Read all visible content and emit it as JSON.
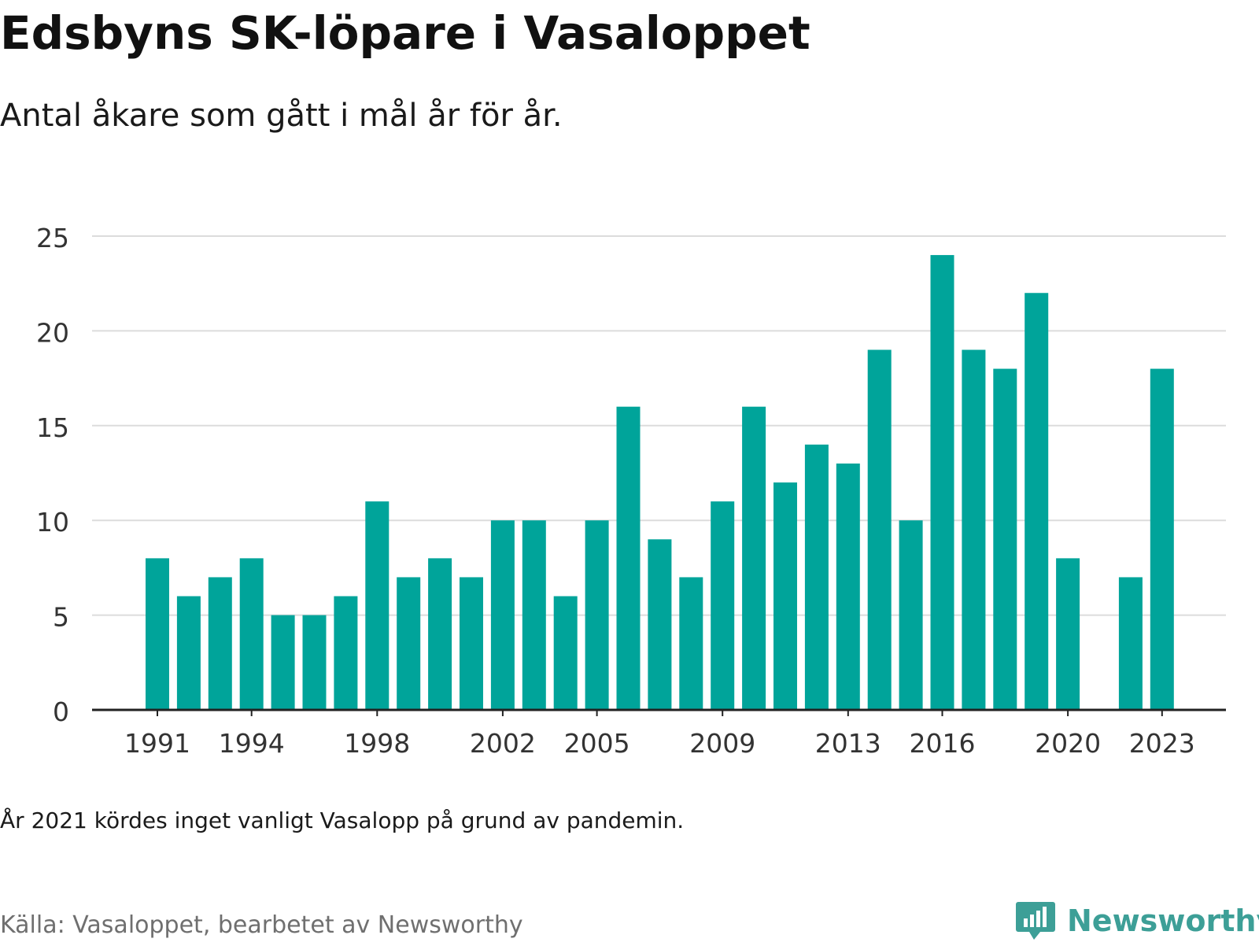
{
  "header": {
    "title": "Edsbyns SK-löpare i Vasaloppet",
    "subtitle": "Antal åkare som gått i mål år för år."
  },
  "footer": {
    "note": "År 2021 kördes inget vanligt Vasalopp på grund av pandemin.",
    "source": "Källa: Vasaloppet, bearbetet av Newsworthy",
    "brand": "Newsworthy"
  },
  "colors": {
    "bar": "#00a49a",
    "grid": "#dcdcdc",
    "axis": "#222222",
    "brand": "#3d9f97"
  },
  "icons": {
    "logo": "newsworthy-logo-icon"
  },
  "chart_data": {
    "type": "bar",
    "title": "Edsbyns SK-löpare i Vasaloppet",
    "subtitle": "Antal åkare som gått i mål år för år.",
    "xlabel": "",
    "ylabel": "",
    "x": [
      1991,
      1992,
      1993,
      1994,
      1995,
      1996,
      1997,
      1998,
      1999,
      2000,
      2001,
      2002,
      2003,
      2004,
      2005,
      2006,
      2007,
      2008,
      2009,
      2010,
      2011,
      2012,
      2013,
      2014,
      2015,
      2016,
      2017,
      2018,
      2019,
      2020,
      2021,
      2022,
      2023
    ],
    "values": [
      8,
      6,
      7,
      8,
      5,
      5,
      6,
      11,
      7,
      8,
      7,
      10,
      10,
      6,
      10,
      16,
      9,
      7,
      11,
      16,
      12,
      14,
      13,
      19,
      10,
      24,
      19,
      18,
      22,
      8,
      null,
      7,
      18
    ],
    "xticks": [
      1991,
      1994,
      1998,
      2002,
      2005,
      2009,
      2013,
      2016,
      2020,
      2023
    ],
    "yticks": [
      0,
      5,
      10,
      15,
      20,
      25
    ],
    "ylim": [
      0,
      25
    ],
    "grid": true,
    "legend": "none"
  }
}
